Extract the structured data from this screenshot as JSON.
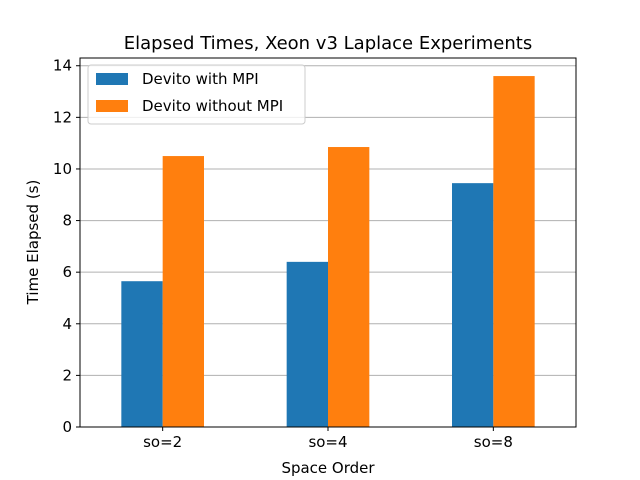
{
  "chart_data": {
    "type": "bar",
    "title": "Elapsed Times, Xeon v3 Laplace Experiments",
    "xlabel": "Space Order",
    "ylabel": "Time Elapsed (s)",
    "categories": [
      "so=2",
      "so=4",
      "so=8"
    ],
    "series": [
      {
        "name": "Devito with MPI",
        "values": [
          5.65,
          6.4,
          9.45
        ],
        "color": "#1f77b4"
      },
      {
        "name": "Devito without MPI",
        "values": [
          10.5,
          10.85,
          13.6
        ],
        "color": "#ff7f0e"
      }
    ],
    "ylim": [
      0,
      14.3
    ],
    "yticks": [
      0,
      2,
      4,
      6,
      8,
      10,
      12,
      14
    ],
    "grid": "horizontal",
    "legend_position": "top-left"
  }
}
